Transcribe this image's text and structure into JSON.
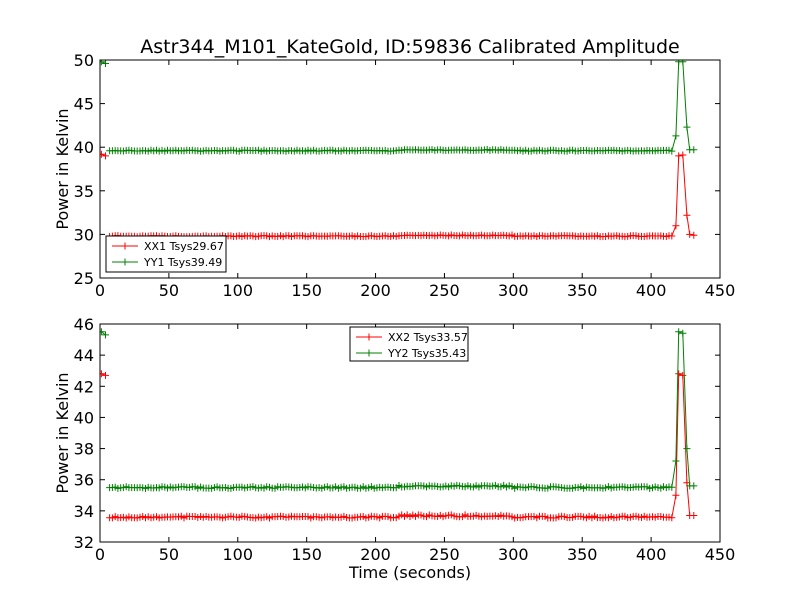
{
  "figure_title": "Astr344_M101_KateGold, ID:59836 Calibrated Amplitude",
  "chart_data": [
    {
      "type": "line",
      "title": "Astr344_M101_KateGold, ID:59836 Calibrated Amplitude",
      "xlabel": "",
      "ylabel": "Power in Kelvin",
      "xlim": [
        0,
        450
      ],
      "ylim": [
        25,
        50
      ],
      "xticks": [
        "0",
        "50",
        "100",
        "150",
        "200",
        "250",
        "300",
        "350",
        "400",
        "450"
      ],
      "yticks": [
        "25",
        "30",
        "35",
        "40",
        "45",
        "50"
      ],
      "legend_location": "lower-left",
      "series": [
        {
          "name": "XX1 Tsys29.67",
          "color": "#ff0000",
          "marker": "plus",
          "baseline": 29.8,
          "segments": [
            [
              [
                1,
                39.2
              ],
              [
                4,
                39.0
              ]
            ],
            [
              [
                7,
                30.0
              ],
              [
                415,
                29.8
              ],
              [
                418,
                31.0
              ],
              [
                420,
                39.0
              ],
              [
                423,
                39.1
              ],
              [
                426,
                32.2
              ],
              [
                428,
                30.0
              ],
              [
                431,
                29.9
              ]
            ]
          ]
        },
        {
          "name": "YY1 Tsys39.49",
          "color": "#008000",
          "marker": "plus",
          "baseline": 39.6,
          "segments": [
            [
              [
                1,
                49.8
              ],
              [
                4,
                49.6
              ]
            ],
            [
              [
                7,
                39.8
              ],
              [
                415,
                39.7
              ],
              [
                418,
                41.3
              ],
              [
                420,
                49.8
              ],
              [
                423,
                49.8
              ],
              [
                426,
                42.3
              ],
              [
                428,
                39.7
              ],
              [
                431,
                39.7
              ]
            ]
          ]
        }
      ]
    },
    {
      "type": "line",
      "title": "",
      "xlabel": "Time (seconds)",
      "ylabel": "Power in Kelvin",
      "xlim": [
        0,
        450
      ],
      "ylim": [
        32,
        46
      ],
      "xticks": [
        "0",
        "50",
        "100",
        "150",
        "200",
        "250",
        "300",
        "350",
        "400",
        "450"
      ],
      "yticks": [
        "32",
        "34",
        "36",
        "38",
        "40",
        "42",
        "44",
        "46"
      ],
      "legend_location": "upper-center",
      "series": [
        {
          "name": "XX2 Tsys33.57",
          "color": "#ff0000",
          "marker": "plus",
          "baseline": 33.6,
          "segments": [
            [
              [
                1,
                42.8
              ],
              [
                4,
                42.7
              ]
            ],
            [
              [
                7,
                33.7
              ],
              [
                415,
                33.6
              ],
              [
                418,
                35.0
              ],
              [
                420,
                42.8
              ],
              [
                423,
                42.7
              ],
              [
                426,
                35.8
              ],
              [
                428,
                33.7
              ],
              [
                431,
                33.7
              ]
            ]
          ]
        },
        {
          "name": "YY2 Tsys35.43",
          "color": "#008000",
          "marker": "plus",
          "baseline": 35.5,
          "segments": [
            [
              [
                1,
                45.5
              ],
              [
                4,
                45.3
              ]
            ],
            [
              [
                7,
                35.6
              ],
              [
                415,
                35.6
              ],
              [
                418,
                37.2
              ],
              [
                420,
                45.5
              ],
              [
                423,
                45.4
              ],
              [
                426,
                38.0
              ],
              [
                428,
                35.6
              ],
              [
                431,
                35.6
              ]
            ]
          ]
        }
      ]
    }
  ]
}
